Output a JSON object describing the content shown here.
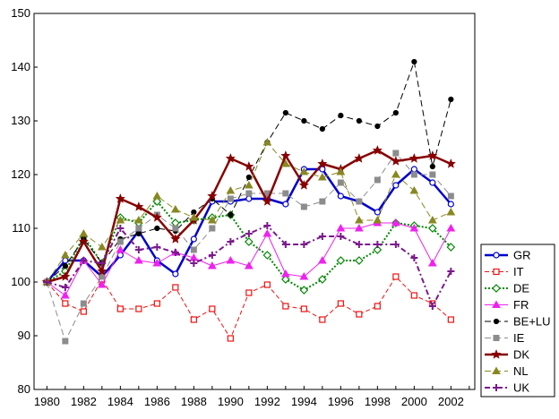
{
  "chart_data": {
    "type": "line",
    "title": "",
    "xlabel": "",
    "ylabel": "",
    "xlim": [
      1979.3,
      2003.3
    ],
    "ylim": [
      80,
      150
    ],
    "x_ticks": [
      "1980",
      "1982",
      "1984",
      "1986",
      "1988",
      "1990",
      "1992",
      "1994",
      "1996",
      "1998",
      "2000",
      "2002"
    ],
    "y_ticks": [
      "80",
      "90",
      "100",
      "110",
      "120",
      "130",
      "140",
      "150"
    ],
    "grid": false,
    "legend_position": "right",
    "x": [
      1980,
      1981,
      1982,
      1983,
      1984,
      1985,
      1986,
      1987,
      1988,
      1989,
      1990,
      1991,
      1992,
      1993,
      1994,
      1995,
      1996,
      1997,
      1998,
      1999,
      2000,
      2001,
      2002
    ],
    "series": [
      {
        "name": "GR",
        "color": "#0000cc",
        "dash": "solid",
        "width": 2.5,
        "marker": "circle-open",
        "values": [
          100,
          104,
          104,
          101,
          105,
          109.5,
          104,
          101.5,
          108,
          115,
          115,
          115.5,
          115.5,
          114.5,
          121,
          121,
          116,
          115,
          113,
          118,
          121,
          118.5,
          114.5
        ]
      },
      {
        "name": "IT",
        "color": "#ee1111",
        "dash": "dash",
        "width": 1,
        "marker": "square-open",
        "values": [
          100,
          96,
          94.5,
          100.5,
          95,
          95,
          96,
          99,
          93,
          95,
          89.5,
          98,
          99.5,
          95.5,
          95,
          93,
          96,
          94,
          95.5,
          101,
          97.5,
          96,
          93
        ]
      },
      {
        "name": "DE",
        "color": "#008800",
        "dash": "dot",
        "width": 2,
        "marker": "diamond-open",
        "values": [
          100,
          102,
          108.5,
          103.5,
          112,
          111,
          115,
          111,
          111.5,
          112,
          112.5,
          107.5,
          105,
          100.5,
          98.5,
          100.5,
          104,
          104,
          106,
          111,
          110.5,
          110,
          106.5
        ]
      },
      {
        "name": "FR",
        "color": "#ee22ee",
        "dash": "solid",
        "width": 1,
        "marker": "triangle",
        "values": [
          100,
          97.5,
          104,
          99.5,
          106,
          104,
          103.5,
          105.5,
          104.5,
          103,
          104,
          103,
          109,
          101.5,
          101,
          104,
          110,
          110,
          111,
          111,
          110,
          103.5,
          110
        ]
      },
      {
        "name": "BE+LU",
        "color": "#000000",
        "dash": "longdash",
        "width": 1,
        "marker": "circle-filled",
        "values": [
          100,
          103,
          108,
          103.5,
          108,
          109,
          110,
          109.5,
          113,
          115.5,
          112.5,
          119.5,
          126,
          131.5,
          130,
          128.5,
          131,
          130,
          129,
          131.5,
          141,
          121.5,
          134
        ]
      },
      {
        "name": "IE",
        "color": "#8c8c8c",
        "dash": "longdash",
        "width": 1,
        "marker": "square-filled",
        "values": [
          100,
          89,
          96,
          101,
          107.5,
          110,
          112.5,
          110,
          106,
          110,
          115.5,
          116.5,
          116.5,
          116.5,
          114,
          115,
          118.5,
          115,
          119,
          124,
          120,
          120,
          116
        ]
      },
      {
        "name": "DK",
        "color": "#880000",
        "dash": "solid",
        "width": 2.5,
        "marker": "star",
        "values": [
          100,
          101,
          107.5,
          102,
          115.5,
          114,
          112,
          108,
          111.5,
          116,
          123,
          121.5,
          115,
          123.5,
          118,
          122,
          121,
          123,
          124.5,
          122.5,
          123,
          123.5,
          122
        ]
      },
      {
        "name": "NL",
        "color": "#888822",
        "dash": "longdash",
        "width": 1,
        "marker": "triangle",
        "values": [
          100,
          105,
          109,
          106.5,
          111.5,
          111.5,
          116,
          113.5,
          112,
          111.5,
          117,
          118,
          126,
          122,
          120.5,
          119.5,
          120.5,
          111.5,
          111.5,
          120,
          117,
          111.5,
          113
        ]
      },
      {
        "name": "UK",
        "color": "#7a1a8c",
        "dash": "dashdot",
        "width": 2,
        "marker": "plus",
        "values": [
          100,
          99,
          104,
          103.5,
          110,
          106,
          106.5,
          105.5,
          103.5,
          105,
          107.5,
          109,
          110.5,
          107,
          107,
          108.5,
          108.5,
          107,
          107,
          107,
          104.5,
          95.5,
          102
        ]
      }
    ]
  }
}
